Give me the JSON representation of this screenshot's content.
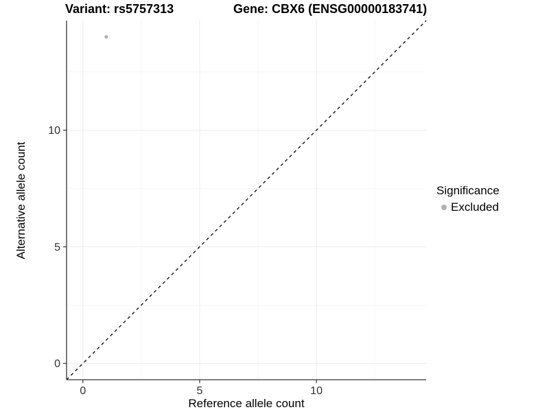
{
  "chart_data": {
    "type": "scatter",
    "title_left": "Variant: rs5757313",
    "title_right": "Gene: CBX6 (ENSG00000183741)",
    "xlabel": "Reference allele count",
    "ylabel": "Alternative allele count",
    "xlim": [
      -0.7,
      14.7
    ],
    "ylim": [
      -0.7,
      14.7
    ],
    "x_ticks": [
      0,
      5,
      10
    ],
    "y_ticks": [
      0,
      5,
      10
    ],
    "x_minor_ticks": [
      2.5,
      7.5,
      12.5
    ],
    "y_minor_ticks": [
      2.5,
      7.5,
      12.5
    ],
    "grid": "major and minor, light gray on white background",
    "points": [
      {
        "x": 1,
        "y": 14,
        "series": "Excluded"
      }
    ],
    "identity_line": {
      "type": "y=x",
      "style": "dashed",
      "color": "#000000",
      "from": [
        -0.7,
        -0.7
      ],
      "to": [
        14.7,
        14.7
      ]
    },
    "legend": {
      "title": "Significance",
      "position": "right",
      "items": [
        {
          "label": "Excluded",
          "color": "#b0b0b0",
          "marker": "circle"
        }
      ]
    },
    "colors": {
      "point": "#b3b3b3",
      "grid_major": "#ebebeb",
      "grid_minor": "#f4f4f4",
      "axis_line": "#333333",
      "tick_mark": "#333333",
      "tick_label": "#303030",
      "title_text": "#000000",
      "background": "#ffffff"
    }
  }
}
